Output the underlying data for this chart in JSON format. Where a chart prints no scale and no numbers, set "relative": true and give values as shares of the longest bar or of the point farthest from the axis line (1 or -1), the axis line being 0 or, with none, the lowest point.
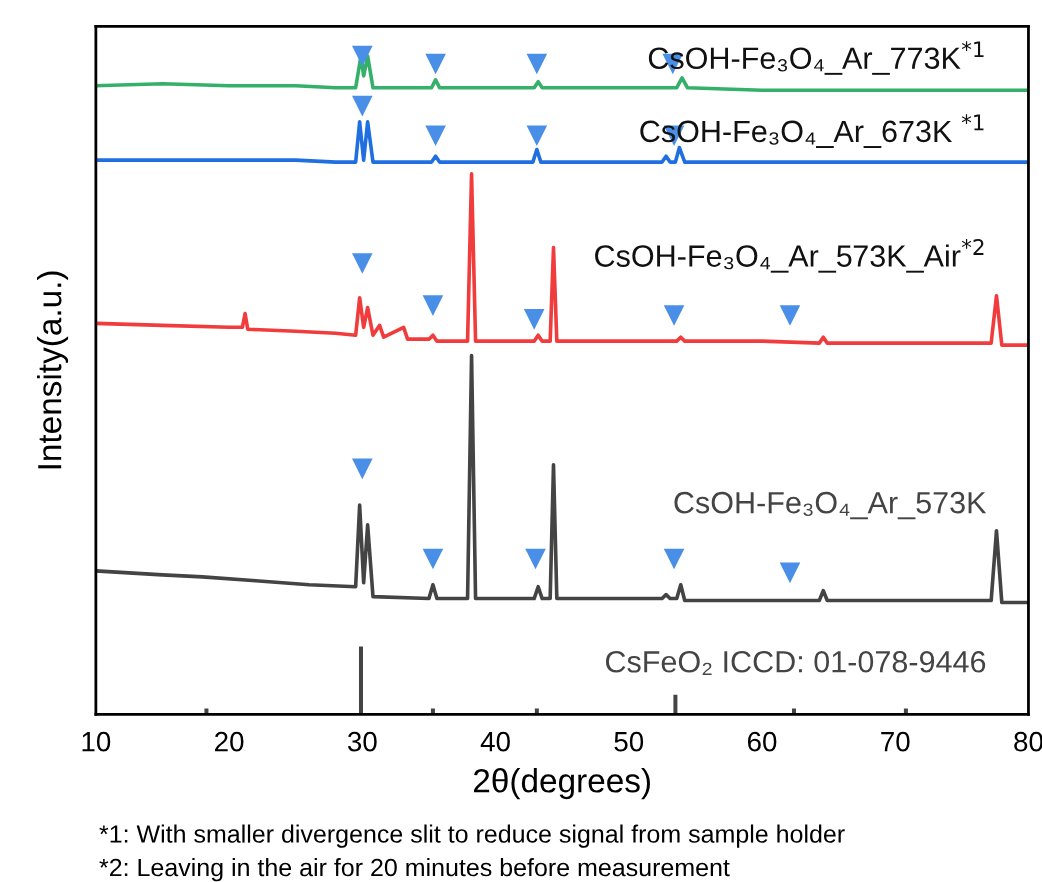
{
  "chart_data": {
    "type": "line",
    "relative": true,
    "xlabel": "2θ(degrees)",
    "ylabel": "Intensity(a.u.)",
    "xlim": [
      10,
      80
    ],
    "xticks": [
      10,
      20,
      30,
      40,
      50,
      60,
      70,
      80
    ],
    "tick_labels": "x",
    "legend": false,
    "grid": false,
    "series": [
      {
        "name": "CsOH-Fe₃O₄_Ar_773K$^{*1}$",
        "color": "#35b06a",
        "x": [
          10,
          15,
          20,
          25,
          28,
          29.5,
          29.9,
          30.1,
          30.4,
          30.8,
          33,
          35.2,
          35.5,
          35.8,
          40,
          42.9,
          43.2,
          43.5,
          50,
          53.6,
          54.0,
          54.4,
          60,
          70,
          80
        ],
        "values": [
          0.955,
          0.958,
          0.955,
          0.955,
          0.952,
          0.952,
          1.0,
          0.97,
          1.0,
          0.952,
          0.952,
          0.952,
          0.964,
          0.952,
          0.952,
          0.952,
          0.961,
          0.952,
          0.952,
          0.952,
          0.967,
          0.952,
          0.948,
          0.948,
          0.948
        ]
      },
      {
        "name": "CsOH-Fe₃O₄_Ar_673K $^{*1}$",
        "color": "#1f6fe0",
        "x": [
          10,
          20,
          25,
          28,
          29.5,
          29.8,
          30.1,
          30.4,
          30.8,
          35.2,
          35.5,
          35.8,
          42.8,
          43.1,
          43.4,
          52.5,
          52.8,
          53.1,
          53.5,
          53.8,
          54.2,
          60,
          70,
          80
        ],
        "values": [
          0.842,
          0.842,
          0.842,
          0.839,
          0.839,
          0.9,
          0.842,
          0.9,
          0.839,
          0.839,
          0.848,
          0.839,
          0.839,
          0.858,
          0.839,
          0.839,
          0.848,
          0.839,
          0.839,
          0.861,
          0.839,
          0.839,
          0.839,
          0.839
        ]
      },
      {
        "name": "CsOH-Fe₃O₄_Ar_573K_Air$^{*2}$",
        "color": "#f03c3c",
        "x": [
          10,
          15,
          20,
          21.0,
          21.2,
          21.4,
          25,
          28,
          29.5,
          29.8,
          30.1,
          30.4,
          30.8,
          31.3,
          31.6,
          33.1,
          33.4,
          35.0,
          35.3,
          35.6,
          37.9,
          38.2,
          38.5,
          42.9,
          43.2,
          43.5,
          44.1,
          44.35,
          44.6,
          50,
          53.6,
          53.9,
          54.2,
          60,
          64.3,
          64.6,
          64.9,
          77.2,
          77.6,
          78.0,
          80
        ],
        "values": [
          0.594,
          0.591,
          0.588,
          0.588,
          0.609,
          0.585,
          0.582,
          0.579,
          0.576,
          0.633,
          0.588,
          0.618,
          0.576,
          0.591,
          0.573,
          0.588,
          0.57,
          0.57,
          0.576,
          0.567,
          0.567,
          0.821,
          0.567,
          0.567,
          0.576,
          0.567,
          0.567,
          0.709,
          0.567,
          0.567,
          0.567,
          0.573,
          0.567,
          0.567,
          0.564,
          0.573,
          0.564,
          0.564,
          0.636,
          0.561,
          0.561
        ]
      },
      {
        "name": "CsOH-Fe₃O₄_Ar_573K",
        "color": "#444444",
        "x": [
          10,
          15,
          18,
          22,
          26,
          29.5,
          29.8,
          30.1,
          30.4,
          30.8,
          35.0,
          35.3,
          35.6,
          37.9,
          38.2,
          38.5,
          42.9,
          43.2,
          43.5,
          44.1,
          44.35,
          44.6,
          52.5,
          52.8,
          53.1,
          53.6,
          53.9,
          54.2,
          64.3,
          64.6,
          64.9,
          77.2,
          77.6,
          78.0,
          80
        ],
        "values": [
          0.218,
          0.212,
          0.209,
          0.203,
          0.197,
          0.194,
          0.318,
          0.2,
          0.288,
          0.179,
          0.176,
          0.197,
          0.176,
          0.176,
          0.545,
          0.176,
          0.176,
          0.194,
          0.176,
          0.176,
          0.379,
          0.176,
          0.176,
          0.182,
          0.176,
          0.176,
          0.197,
          0.173,
          0.173,
          0.188,
          0.173,
          0.173,
          0.279,
          0.17,
          0.17
        ]
      },
      {
        "name": "CsFeO₂ ICCD: 01-078-9446",
        "type": "bar",
        "color": "#444444",
        "x": [
          18.3,
          29.9,
          35.3,
          43.1,
          53.5,
          62.4,
          70.8
        ],
        "values": [
          0.009,
          0.103,
          0.009,
          0.009,
          0.03,
          0.009,
          0.009
        ]
      },
      {
        "type": "scatter",
        "marker": "triangle",
        "color": "#4a8fe7",
        "x": [
          30.0,
          35.5,
          43.1,
          53.3,
          30.0,
          35.5,
          43.1,
          53.4,
          30.0,
          35.3,
          42.9,
          53.4,
          62.1,
          30.0,
          35.3,
          43.0,
          53.4,
          62.1
        ],
        "values": [
          1.0,
          0.988,
          0.988,
          0.988,
          0.924,
          0.879,
          0.879,
          0.879,
          0.685,
          0.621,
          0.6,
          0.606,
          0.606,
          0.373,
          0.236,
          0.236,
          0.236,
          0.215
        ]
      }
    ],
    "annotations": [
      "*1: With smaller divergence slit to reduce signal from sample holder",
      "*2: Leaving in the air for 20 minutes before measurement"
    ]
  }
}
